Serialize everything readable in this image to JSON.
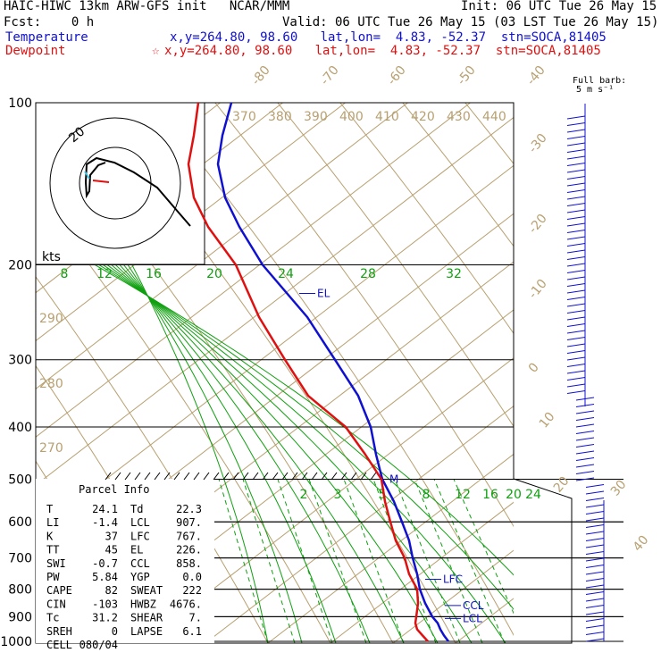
{
  "header": {
    "title_left": "HAIC-HIWC 13km ARW-GFS init   NCAR/MMM",
    "init": "Init: 06 UTC Tue 26 May 15",
    "fcst": "Fcst:    0 h",
    "valid": "Valid: 06 UTC Tue 26 May 15 (03 LST Tue 26 May 15)",
    "temp_label": "Temperature",
    "temp_info": "x,y=264.80, 98.60   lat,lon=  4.83, -52.37  stn=SOCA,81405",
    "dew_label": "Dewpoint",
    "dew_star": "☆",
    "dew_info": "x,y=264.80, 98.60   lat,lon=  4.83, -52.37  stn=SOCA,81405",
    "barb_label_1": "Full barb:",
    "barb_label_2": "5 m s⁻¹"
  },
  "colors": {
    "temperature": "#1010d0",
    "dewpoint": "#e01010",
    "isotherm": "#b8a070",
    "adiabat": "#10a010"
  },
  "hodograph": {
    "units": "kts",
    "ring_label": "20"
  },
  "parcel_info": {
    "title": "Parcel Info",
    "rows": [
      [
        "T",
        "24.1",
        "Td",
        "22.3"
      ],
      [
        "LI",
        "-1.4",
        "LCL",
        "907."
      ],
      [
        "K",
        "37",
        "LFC",
        "767."
      ],
      [
        "TT",
        "45",
        "EL",
        "226."
      ],
      [
        "SWI",
        "-0.7",
        "CCL",
        "858."
      ],
      [
        "PW",
        "5.84",
        "YGP",
        "0.0"
      ],
      [
        "CAPE",
        "82",
        "SWEAT",
        "222"
      ],
      [
        "CIN",
        "-103",
        "HWBZ",
        "4676."
      ],
      [
        "Tc",
        "31.2",
        "SHEAR",
        "7."
      ],
      [
        "SREH",
        "0",
        "LAPSE",
        "6.1"
      ],
      [
        "CELL",
        "080/04",
        "",
        ""
      ]
    ]
  },
  "chart_data": {
    "type": "line",
    "title": "HAIC-HIWC 13km ARW-GFS init   NCAR/MMM",
    "pressure_levels": [
      "100",
      "200",
      "300",
      "400",
      "500",
      "600",
      "700",
      "800",
      "900",
      "1000"
    ],
    "isotherm_labels": [
      "-80",
      "-70",
      "-60",
      "-50",
      "-40",
      "-30",
      "-20",
      "-10",
      "0",
      "10",
      "20",
      "30",
      "40"
    ],
    "theta_labels_upper": [
      "370",
      "380",
      "390",
      "400",
      "410",
      "420",
      "430",
      "440"
    ],
    "theta_labels_lower": [
      "290",
      "280",
      "270"
    ],
    "mixing_ratio_labels_upper": [
      "8",
      "12",
      "16",
      "20",
      "24",
      "28",
      "32"
    ],
    "mixing_ratio_labels_lower": [
      "2",
      "3",
      "5",
      "8",
      "12",
      "16",
      "20",
      "24"
    ],
    "levels_marked": [
      "EL",
      "LFC",
      "CCL",
      "LCL",
      "M"
    ],
    "series": [
      {
        "name": "Temperature",
        "points": [
          {
            "p": 1000,
            "x": 502
          },
          {
            "p": 975,
            "x": 497
          },
          {
            "p": 950,
            "x": 493
          },
          {
            "p": 925,
            "x": 490
          },
          {
            "p": 900,
            "x": 484
          },
          {
            "p": 850,
            "x": 476
          },
          {
            "p": 800,
            "x": 470
          },
          {
            "p": 750,
            "x": 467
          },
          {
            "p": 700,
            "x": 462
          },
          {
            "p": 650,
            "x": 458
          },
          {
            "p": 600,
            "x": 450
          },
          {
            "p": 550,
            "x": 441
          },
          {
            "p": 500,
            "x": 428
          },
          {
            "p": 450,
            "x": 421
          },
          {
            "p": 400,
            "x": 415
          },
          {
            "p": 350,
            "x": 401
          },
          {
            "p": 300,
            "x": 375
          },
          {
            "p": 250,
            "x": 344
          },
          {
            "p": 200,
            "x": 294
          },
          {
            "p": 170,
            "x": 268
          },
          {
            "p": 150,
            "x": 252
          },
          {
            "p": 130,
            "x": 244
          },
          {
            "p": 115,
            "x": 249
          },
          {
            "p": 100,
            "x": 259
          }
        ]
      },
      {
        "name": "Dewpoint",
        "points": [
          {
            "p": 1000,
            "x": 479
          },
          {
            "p": 975,
            "x": 473
          },
          {
            "p": 950,
            "x": 467
          },
          {
            "p": 925,
            "x": 465
          },
          {
            "p": 900,
            "x": 466
          },
          {
            "p": 850,
            "x": 468
          },
          {
            "p": 800,
            "x": 467
          },
          {
            "p": 750,
            "x": 458
          },
          {
            "p": 700,
            "x": 453
          },
          {
            "p": 650,
            "x": 443
          },
          {
            "p": 600,
            "x": 437
          },
          {
            "p": 550,
            "x": 431
          },
          {
            "p": 500,
            "x": 427
          },
          {
            "p": 450,
            "x": 409
          },
          {
            "p": 400,
            "x": 387
          },
          {
            "p": 350,
            "x": 345
          },
          {
            "p": 300,
            "x": 319
          },
          {
            "p": 250,
            "x": 290
          },
          {
            "p": 200,
            "x": 264
          },
          {
            "p": 170,
            "x": 233
          },
          {
            "p": 150,
            "x": 217
          },
          {
            "p": 130,
            "x": 211
          },
          {
            "p": 115,
            "x": 217
          },
          {
            "p": 100,
            "x": 222
          }
        ]
      }
    ]
  }
}
